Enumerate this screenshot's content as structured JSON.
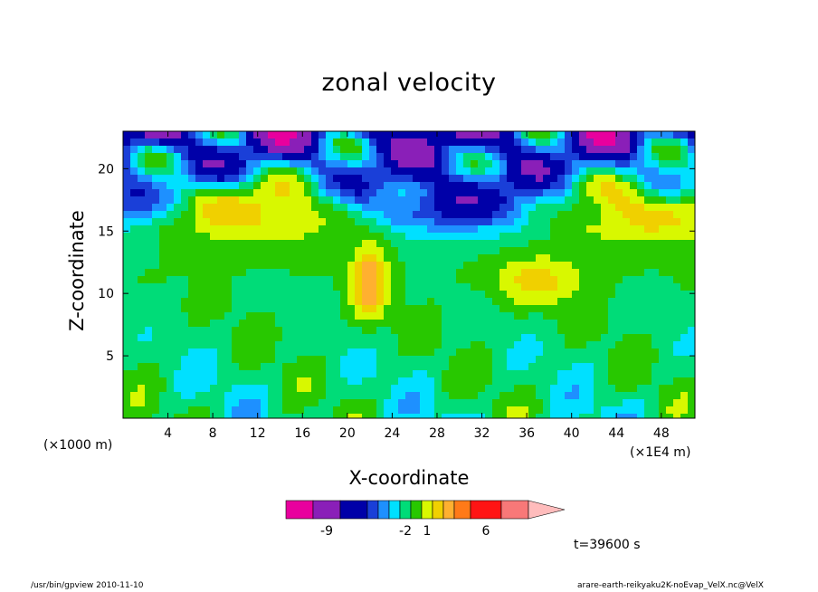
{
  "chart_data": {
    "type": "heatmap",
    "title": "zonal velocity",
    "xlabel": "X-coordinate",
    "ylabel": "Z-coordinate",
    "x_unit_label": "(×1E4 m)",
    "y_unit_label": "(×1000 m)",
    "x_range": [
      0,
      51
    ],
    "y_range": [
      0,
      23
    ],
    "x_ticks": [
      4,
      8,
      12,
      16,
      20,
      24,
      28,
      32,
      36,
      40,
      44,
      48
    ],
    "y_ticks": [
      5,
      10,
      15,
      20
    ],
    "colorbar_labels": [
      {
        "level_index": 1,
        "text": "-9"
      },
      {
        "level_index": 6,
        "text": "-2"
      },
      {
        "level_index": 8,
        "text": "1"
      },
      {
        "level_index": 12,
        "text": "6"
      }
    ],
    "colorbar_colors": [
      "#e8009e",
      "#8a1fb8",
      "#0000a8",
      "#1a3fd8",
      "#1e90ff",
      "#00e0ff",
      "#00dc78",
      "#28c800",
      "#d8f800",
      "#f0d000",
      "#ffb030",
      "#ff7a18",
      "#ff1414",
      "#f87878",
      "#ffbcbc"
    ],
    "timestamp": "t=39600 s",
    "zero_level_color": "#f0f000"
  },
  "footer": {
    "left": "/usr/bin/gpview  2010-11-10",
    "right": "arare-earth-reikyaku2K-noEvap_VelX.nc@VelX"
  }
}
